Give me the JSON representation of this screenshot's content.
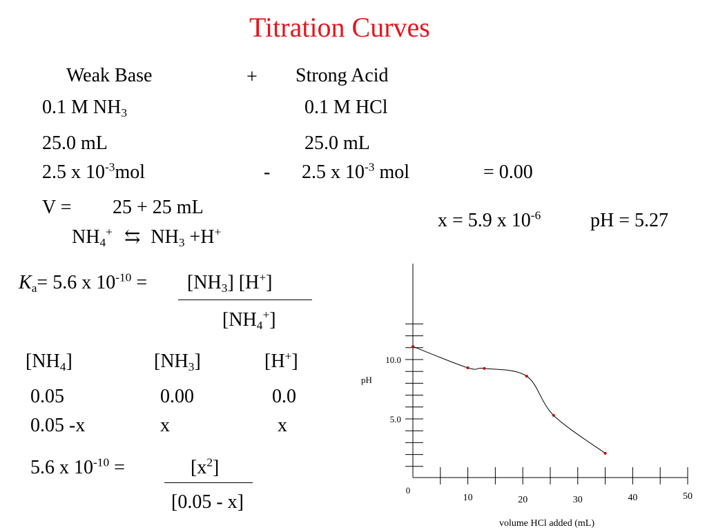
{
  "title": "Titration Curves",
  "header": {
    "weak_base": "Weak Base",
    "plus": "+",
    "strong_acid": "Strong Acid"
  },
  "row_conc": {
    "base": "0.1 M NH",
    "base_sub": "3",
    "acid": "0.1 M HCl"
  },
  "row_vol": {
    "base": "25.0 mL",
    "acid": "25.0 mL"
  },
  "row_mol": {
    "base_a": "2.5 x 10",
    "base_sup": "-3",
    "base_b": "mol",
    "minus": "-",
    "acid_a": "2.5 x 10",
    "acid_sup": "-3",
    "acid_b": " mol",
    "result": "= 0.00"
  },
  "volume_line": {
    "label": "V =",
    "value": "25 + 25 mL"
  },
  "equilibrium": {
    "nh4": "NH",
    "nh4_sub": "4",
    "nh4_sup": "+",
    "arrow": "⇆",
    "nh3": "NH",
    "nh3_sub": "3",
    "plus_h": "+H",
    "h_sup": "+"
  },
  "result_line": {
    "x_a": "x = 5.9 x 10",
    "x_sup": "-6",
    "ph": "pH = 5.27"
  },
  "ka": {
    "k": "K",
    "a": "a",
    "eq": "=  5.6 x 10",
    "sup": "-10",
    "eq2": " =",
    "num_a": "[NH",
    "num_sub": "3",
    "num_b": "]  [H",
    "num_sup": "+",
    "num_c": "]",
    "den_a": "[NH",
    "den_sub": "4",
    "den_sup": "+",
    "den_b": "]"
  },
  "ice_table": {
    "h1_a": "[NH",
    "h1_sub": "4",
    "h1_b": "]",
    "h2_a": "[NH",
    "h2_sub": "3",
    "h2_b": "]",
    "h3_a": "[H",
    "h3_sup": "+",
    "h3_b": "]",
    "r1": [
      "0.05",
      "0.00",
      "0.0"
    ],
    "r2": [
      "0.05 -x",
      "x",
      "x"
    ]
  },
  "final_eq": {
    "lhs_a": "5.6 x 10",
    "lhs_sup": "-10",
    "lhs_b": " =",
    "num_a": "[x",
    "num_sup": "2",
    "num_b": "]",
    "den": "[0.05 - x]"
  },
  "chart_data": {
    "type": "line",
    "title": "",
    "xlabel": "volume HCl added (mL)",
    "ylabel": "pH",
    "x_ticks": [
      "10",
      "20",
      "30",
      "40",
      "50"
    ],
    "y_ticks": [
      "5.0",
      "10.0"
    ],
    "origin_label": "0",
    "xlim": [
      0,
      50
    ],
    "ylim": [
      0,
      13
    ],
    "grid": false,
    "line_color": "#000000",
    "marker_color": "#cc0000",
    "points": [
      {
        "x": 0,
        "y": 11.1
      },
      {
        "x": 10,
        "y": 9.3
      },
      {
        "x": 13,
        "y": 9.25
      },
      {
        "x": 20.7,
        "y": 8.6
      },
      {
        "x": 25.6,
        "y": 5.3
      },
      {
        "x": 35,
        "y": 2.1
      }
    ]
  }
}
